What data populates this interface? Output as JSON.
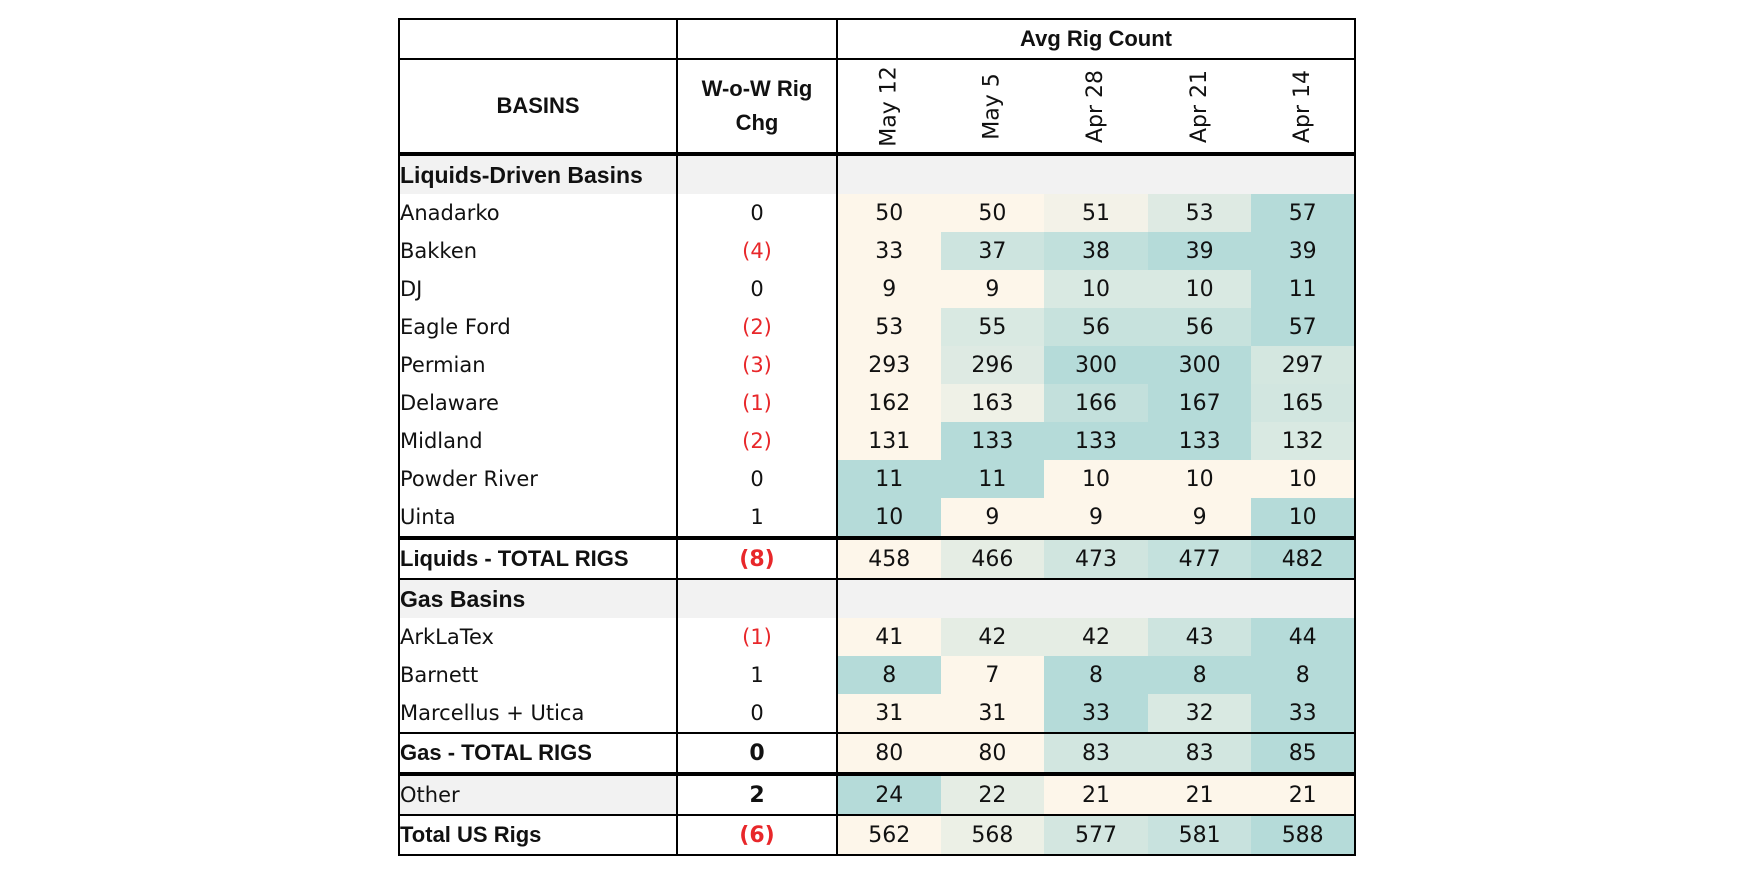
{
  "chart_data": {
    "type": "table",
    "title": "Avg Rig Count",
    "column_headers": {
      "basins": "BASINS",
      "wow_line1": "W-o-W Rig",
      "wow_line2": "Chg",
      "weeks": [
        "May 12",
        "May 5",
        "Apr 28",
        "Apr 21",
        "Apr 14"
      ]
    },
    "sections": {
      "liquids_label": "Liquids-Driven Basins",
      "gas_label": "Gas Basins"
    },
    "liquids_rows": [
      {
        "name": "Anadarko",
        "chg": "0",
        "values": [
          50,
          50,
          51,
          53,
          57
        ]
      },
      {
        "name": "Bakken",
        "chg": "(4)",
        "values": [
          33,
          37,
          38,
          39,
          39
        ]
      },
      {
        "name": "DJ",
        "chg": "0",
        "values": [
          9,
          9,
          10,
          10,
          11
        ]
      },
      {
        "name": "Eagle Ford",
        "chg": "(2)",
        "values": [
          53,
          55,
          56,
          56,
          57
        ]
      },
      {
        "name": "Permian",
        "chg": "(3)",
        "values": [
          293,
          296,
          300,
          300,
          297
        ]
      },
      {
        "name": "Delaware",
        "chg": "(1)",
        "values": [
          162,
          163,
          166,
          167,
          165
        ]
      },
      {
        "name": "Midland",
        "chg": "(2)",
        "values": [
          131,
          133,
          133,
          133,
          132
        ]
      },
      {
        "name": "Powder River",
        "chg": "0",
        "values": [
          11,
          11,
          10,
          10,
          10
        ]
      },
      {
        "name": "Uinta",
        "chg": "1",
        "values": [
          10,
          9,
          9,
          9,
          10
        ]
      }
    ],
    "liquids_total": {
      "name": "Liquids - TOTAL RIGS",
      "chg": "(8)",
      "values": [
        458,
        466,
        473,
        477,
        482
      ]
    },
    "gas_rows": [
      {
        "name": "ArkLaTex",
        "chg": "(1)",
        "values": [
          41,
          42,
          42,
          43,
          44
        ]
      },
      {
        "name": "Barnett",
        "chg": "1",
        "values": [
          8,
          7,
          8,
          8,
          8
        ]
      },
      {
        "name": "Marcellus + Utica",
        "chg": "0",
        "values": [
          31,
          31,
          33,
          32,
          33
        ]
      }
    ],
    "gas_total": {
      "name": "Gas - TOTAL RIGS",
      "chg": "0",
      "values": [
        80,
        80,
        83,
        83,
        85
      ]
    },
    "other": {
      "name": "Other",
      "chg": "2",
      "values": [
        24,
        22,
        21,
        21,
        21
      ]
    },
    "us_total": {
      "name": "Total US Rigs",
      "chg": "(6)",
      "values": [
        562,
        568,
        577,
        581,
        588
      ]
    },
    "colors": {
      "heat_low": "#fdf6ea",
      "heat_high": "#b5dbd9",
      "negative": "#e8272a",
      "section_fill": "#f2f2f2"
    }
  }
}
